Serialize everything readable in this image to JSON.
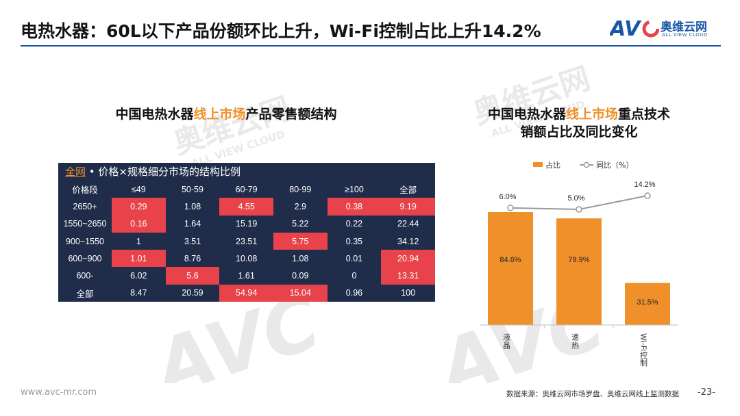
{
  "header": {
    "title": "电热水器：60L以下产品份额环比上升，Wi-Fi控制占比上升14.2%",
    "logo_cn": "奥维云网",
    "logo_en": "ALL VIEW CLOUD",
    "accent": "#1a56a8"
  },
  "watermark": {
    "brand": "AVC",
    "cn": "奥维云网",
    "en": "ALL VIEW CLOUD"
  },
  "left_section": {
    "title_pre": "中国电热水器",
    "title_hl": "线上市场",
    "title_post": "产品零售额结构"
  },
  "table": {
    "caption_hl": "全网",
    "caption_rest": " • 价格×规格细分市场的结构比例",
    "header": [
      "价格段",
      "≤49",
      "50-59",
      "60-79",
      "80-99",
      "≥100",
      "全部"
    ],
    "rows": [
      [
        "2650+",
        "0.29",
        "1.08",
        "4.55",
        "2.9",
        "0.38",
        "9.19"
      ],
      [
        "1550~2650",
        "0.16",
        "1.64",
        "15.19",
        "5.22",
        "0.22",
        "22.44"
      ],
      [
        "900~1550",
        "1",
        "3.51",
        "23.51",
        "5.75",
        "0.35",
        "34.12"
      ],
      [
        "600~900",
        "1.01",
        "8.76",
        "10.08",
        "1.08",
        "0.01",
        "20.94"
      ],
      [
        "600-",
        "6.02",
        "5.6",
        "1.61",
        "0.09",
        "0",
        "13.31"
      ],
      [
        "全部",
        "8.47",
        "20.59",
        "54.94",
        "15.04",
        "0.96",
        "100"
      ]
    ],
    "highlight": [
      [
        true,
        false,
        true,
        false,
        true,
        true
      ],
      [
        true,
        false,
        false,
        false,
        false,
        false
      ],
      [
        false,
        false,
        false,
        true,
        false,
        false
      ],
      [
        true,
        false,
        false,
        false,
        false,
        true
      ],
      [
        false,
        true,
        false,
        false,
        false,
        true
      ],
      [
        false,
        false,
        true,
        true,
        false,
        false
      ]
    ],
    "colors": {
      "base": "#1f2d4a",
      "hot": "#e8434a",
      "accent": "#f0902a"
    }
  },
  "right_section": {
    "title_line1_pre": "中国电热水器",
    "title_line1_hl": "线上市场",
    "title_line1_post": "重点技术",
    "title_line2": "销额占比及同比变化"
  },
  "chart_data": {
    "type": "bar",
    "categories": [
      "液晶",
      "速热",
      "Wi-Fi控制"
    ],
    "series": [
      {
        "name": "占比",
        "kind": "bar",
        "values": [
          84.6,
          79.9,
          31.5
        ],
        "labels": [
          "84.6%",
          "79.9%",
          "31.5%"
        ],
        "color": "#f0902a"
      },
      {
        "name": "同比（%）",
        "kind": "line",
        "values": [
          6.0,
          5.0,
          14.2
        ],
        "labels": [
          "6.0%",
          "5.0%",
          "14.2%"
        ],
        "color": "#999999"
      }
    ],
    "title": "",
    "legend": "top-center",
    "grid": false
  },
  "footer": {
    "url": "www.avc-mr.com",
    "source": "数据来源：奥维云网市场罗盘、奥维云网线上监测数据",
    "page": "-23-"
  }
}
